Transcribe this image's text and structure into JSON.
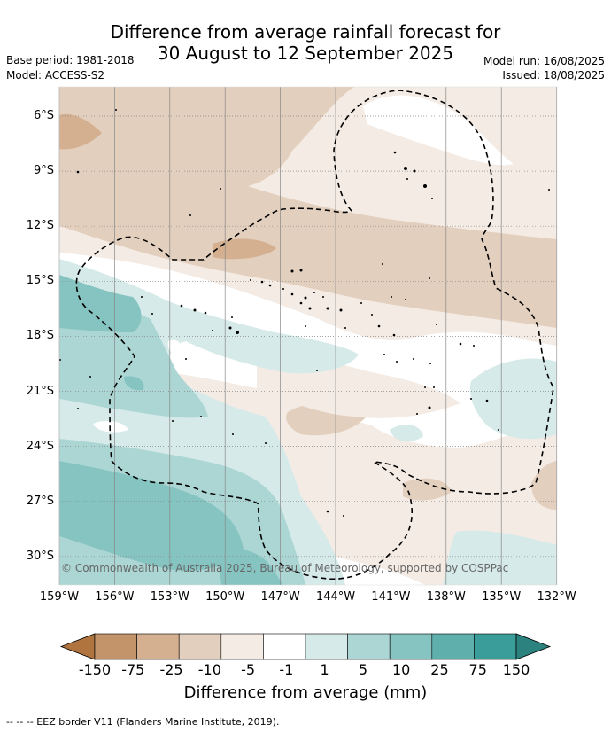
{
  "title_line1": "Difference from average rainfall forecast for",
  "title_line2": "30 August to 12 September 2025",
  "meta_left": [
    "Base period: 1981-2018",
    "Model: ACCESS-S2"
  ],
  "meta_right": [
    "Model run: 16/08/2025",
    "Issued: 18/08/2025"
  ],
  "lat_labels": [
    "6°S",
    "9°S",
    "12°S",
    "15°S",
    "18°S",
    "21°S",
    "24°S",
    "27°S",
    "30°S"
  ],
  "lon_labels": [
    "159°W",
    "156°W",
    "153°W",
    "150°W",
    "147°W",
    "144°W",
    "141°W",
    "138°W",
    "135°W",
    "132°W"
  ],
  "copyright": "© Commonwealth of Australia 2025, Bureau of Meteorology, supported by COSPPac",
  "colorbar": {
    "ticks": [
      "-150",
      "-75",
      "-25",
      "-10",
      "-5",
      "-1",
      "1",
      "5",
      "10",
      "25",
      "75",
      "150"
    ],
    "colors": [
      "#b0743f",
      "#c39369",
      "#d4b090",
      "#e3cfbd",
      "#f4ebe4",
      "#ffffff",
      "#d6eae9",
      "#acd6d4",
      "#86c4c1",
      "#5fb0ad",
      "#3a9d99",
      "#2b827f"
    ],
    "title": "Difference from average (mm)"
  },
  "footer": "--  --  -- EEZ border V11 (Flanders Marine Institute, 2019)."
}
